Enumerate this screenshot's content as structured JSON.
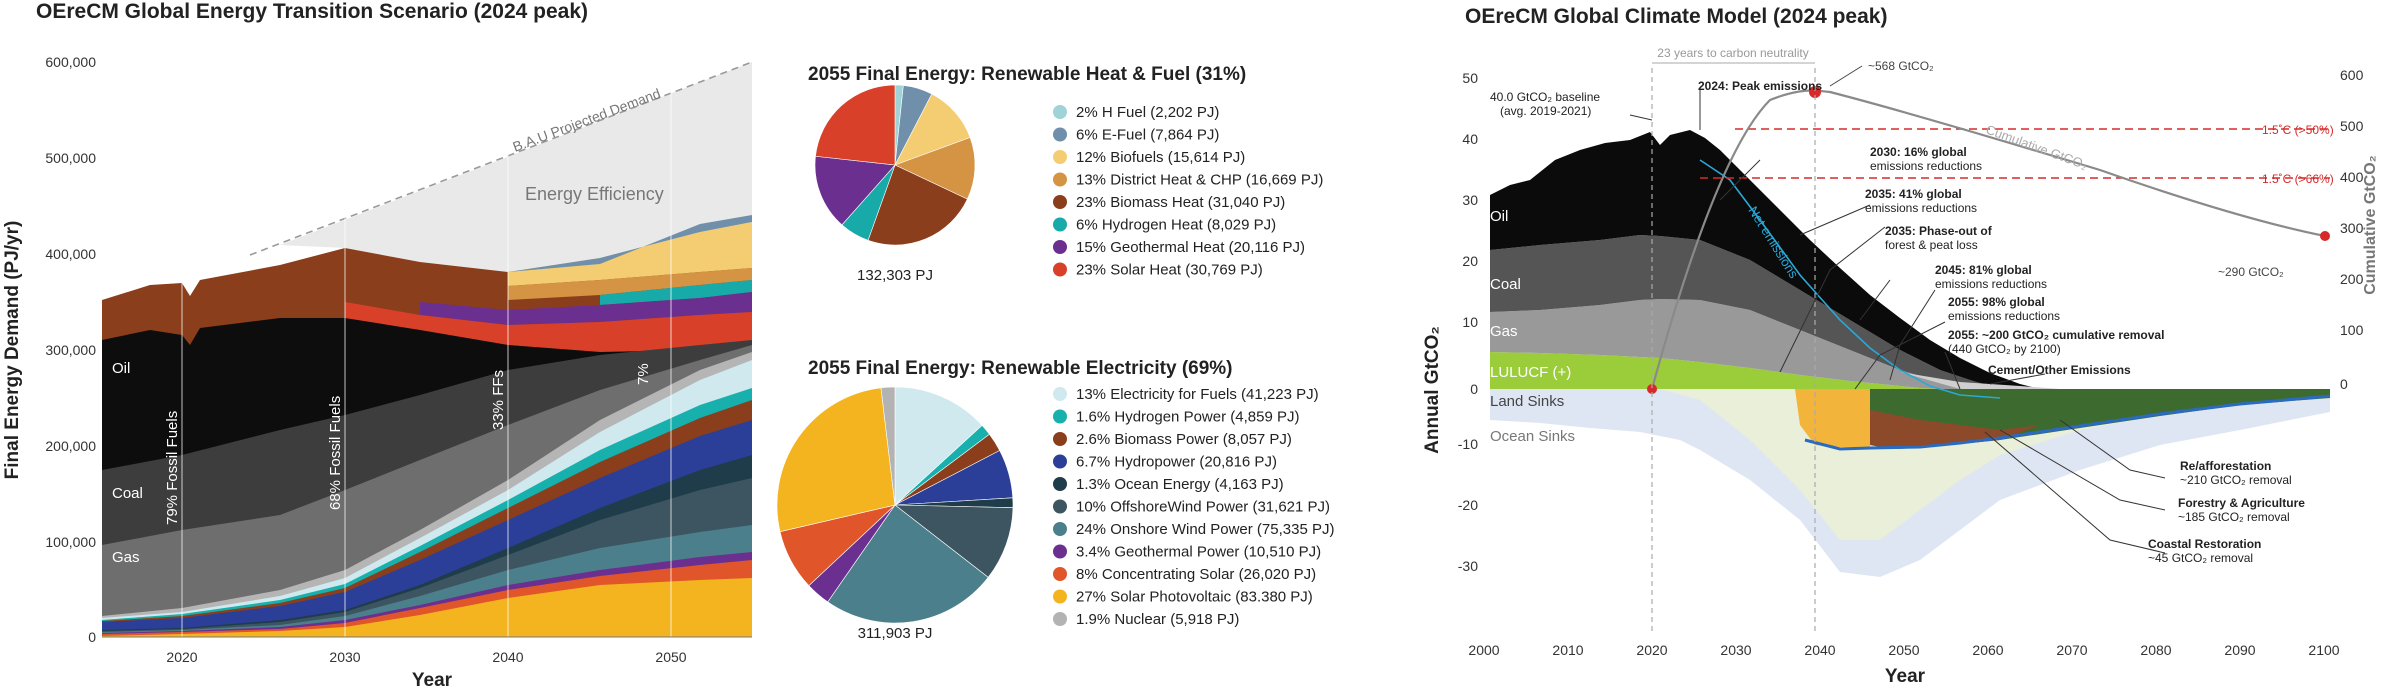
{
  "energy": {
    "title": "OEreCM Global Energy Transition Scenario (2024 peak)",
    "ylabel": "Final Energy Demand (PJ/yr)",
    "xlabel": "Year",
    "annotations": {
      "bau": "B.A.U Projected Demand",
      "efficiency": "Energy Efficiency",
      "oil": "Oil",
      "coal": "Coal",
      "gas": "Gas",
      "ff79": "79% Fossil Fuels",
      "ff68": "68% Fossil Fuels",
      "ff33": "33% FFs",
      "ff7": "7%"
    }
  },
  "heat_pie": {
    "title": "2055 Final Energy: Renewable Heat & Fuel (31%)",
    "total": "132,303 PJ",
    "items": [
      {
        "label": "2% H Fuel (2,202 PJ)",
        "value": 2202,
        "color": "#9fd3d8"
      },
      {
        "label": "6% E-Fuel (7,864 PJ)",
        "value": 7864,
        "color": "#6f8fab"
      },
      {
        "label": "12% Biofuels (15,614 PJ)",
        "value": 15614,
        "color": "#f4cd73"
      },
      {
        "label": "13% District Heat & CHP (16,669 PJ)",
        "value": 16669,
        "color": "#d49444"
      },
      {
        "label": "23% Biomass Heat (31,040 PJ)",
        "value": 31040,
        "color": "#8b3e1b"
      },
      {
        "label": "6% Hydrogen Heat (8,029 PJ)",
        "value": 8029,
        "color": "#17aaa8"
      },
      {
        "label": "15% Geothermal Heat (20,116 PJ)",
        "value": 20116,
        "color": "#6b2f8f"
      },
      {
        "label": "23% Solar Heat (30,769 PJ)",
        "value": 30769,
        "color": "#d8402a"
      }
    ]
  },
  "elec_pie": {
    "title": "2055 Final Energy: Renewable Electricity (69%)",
    "total": "311,903 PJ",
    "items": [
      {
        "label": "13% Electricity for Fuels (41,223 PJ)",
        "value": 41223,
        "color": "#cfe9ee"
      },
      {
        "label": "1.6% Hydrogen Power (4,859 PJ)",
        "value": 4859,
        "color": "#17b0ad"
      },
      {
        "label": "2.6% Biomass Power (8,057 PJ)",
        "value": 8057,
        "color": "#8b3e1b"
      },
      {
        "label": "6.7% Hydropower (20,816 PJ)",
        "value": 20816,
        "color": "#2b3f99"
      },
      {
        "label": "1.3% Ocean Energy (4,163 PJ)",
        "value": 4163,
        "color": "#1f3c4a"
      },
      {
        "label": "10% OffshoreWind Power (31,621 PJ)",
        "value": 31621,
        "color": "#3c5560"
      },
      {
        "label": "24% Onshore Wind Power (75,335 PJ)",
        "value": 75335,
        "color": "#4c7f8c"
      },
      {
        "label": "3.4% Geothermal Power (10,510 PJ)",
        "value": 10510,
        "color": "#6b2f8f"
      },
      {
        "label": "8% Concentrating Solar (26,020 PJ)",
        "value": 26020,
        "color": "#e0562a"
      },
      {
        "label": "27% Solar Photovoltaic (83.380 PJ)",
        "value": 83380,
        "color": "#f4b420"
      },
      {
        "label": "1.9% Nuclear (5,918 PJ)",
        "value": 5918,
        "color": "#b3b3b3"
      }
    ]
  },
  "climate": {
    "title": "OEreCM Global Climate Model (2024 peak)",
    "ylabel": "Annual  GtCO₂",
    "y2label": "Cumulative GtCO₂",
    "xlabel": "Year",
    "labels": {
      "neutrality": "23 years to carbon neutrality",
      "cum568": "~568 GtCO₂",
      "cum290": "~290 GtCO₂",
      "baseline1": "40.0 GtCO₂ baseline",
      "baseline2": "(avg. 2019-2021)",
      "peak": "2024: Peak emissions",
      "l15_50": "1.5˚C (>50%)",
      "l15_66": "1.5˚C (>66%)",
      "cumcurve": "Cumulative GtCO₂",
      "netem": "Net emissions",
      "oil": "Oil",
      "coal": "Coal",
      "gas": "Gas",
      "luluc": "LULUCF (+)",
      "land": "Land Sinks",
      "ocean": "Ocean Sinks",
      "a2030a": "2030: 16% global",
      "a2030b": "emissions reductions",
      "a2035a": "2035: 41% global",
      "a2035b": "emissions reductions",
      "a2035c": "2035: Phase-out of",
      "a2035d": "forest & peat loss",
      "a2045a": "2045: 81% global",
      "a2045b": "emissions reductions",
      "a2055a": "2055: 98% global",
      "a2055b": "emissions reductions",
      "a2055c": "2055: ~200 GtCO₂ cumulative removal",
      "a2055d": "(440 GtCO₂ by 2100)",
      "cement": "Cement/Other Emissions",
      "refor1": "Re/afforestation",
      "refor2": "~210 GtCO₂ removal",
      "forest1": "Forestry & Agriculture",
      "forest2": "~185 GtCO₂ removal",
      "coast1": "Coastal Restoration",
      "coast2": "~45 GtCO₂ removal"
    }
  },
  "chart_data": [
    {
      "type": "area",
      "title": "OEreCM Global Energy Transition Scenario (2024 peak)",
      "xlabel": "Year",
      "ylabel": "Final Energy Demand (PJ/yr)",
      "xlim": [
        2015,
        2055
      ],
      "ylim": [
        0,
        600000
      ],
      "x": [
        2015,
        2020,
        2025,
        2030,
        2035,
        2040,
        2045,
        2050,
        2055
      ],
      "series": [
        {
          "name": "Solar",
          "values": [
            2000,
            4000,
            9000,
            20000,
            40000,
            60000,
            72000,
            80000,
            85000
          ]
        },
        {
          "name": "Concentrating Solar",
          "values": [
            500,
            1000,
            2000,
            4000,
            8000,
            14000,
            20000,
            24000,
            26000
          ]
        },
        {
          "name": "Geothermal",
          "values": [
            1000,
            1500,
            2000,
            3000,
            5000,
            7000,
            8500,
            10000,
            10500
          ]
        },
        {
          "name": "Onshore Wind",
          "values": [
            1000,
            3000,
            8000,
            16000,
            28000,
            45000,
            60000,
            70000,
            75000
          ]
        },
        {
          "name": "Offshore Wind",
          "values": [
            300,
            800,
            2000,
            5000,
            10000,
            18000,
            25000,
            30000,
            32000
          ]
        },
        {
          "name": "Hydropower",
          "values": [
            12000,
            13000,
            14000,
            15000,
            16000,
            17500,
            19000,
            20000,
            20800
          ]
        },
        {
          "name": "Electricity for Fuels",
          "values": [
            0,
            0,
            0,
            1000,
            4000,
            12000,
            25000,
            36000,
            41000
          ]
        },
        {
          "name": "Gas",
          "values": [
            80000,
            82000,
            83000,
            82000,
            80000,
            55000,
            30000,
            15000,
            4000
          ]
        },
        {
          "name": "Coal",
          "values": [
            75000,
            76000,
            74000,
            70000,
            60000,
            40000,
            20000,
            8000,
            2000
          ]
        },
        {
          "name": "Oil",
          "values": [
            140000,
            150000,
            155000,
            140000,
            110000,
            80000,
            50000,
            20000,
            5000
          ]
        },
        {
          "name": "Renewable Heat & Fuel",
          "values": [
            45000,
            45000,
            50000,
            52000,
            55000,
            60000,
            85000,
            110000,
            132000
          ]
        },
        {
          "name": "B.A.U Projected Demand",
          "values": [
            355000,
            375000,
            395000,
            415000,
            450000,
            490000,
            525000,
            560000,
            600000
          ]
        }
      ]
    },
    {
      "type": "pie",
      "title": "2055 Final Energy: Renewable Heat & Fuel (31%)",
      "categories": [
        "H Fuel",
        "E-Fuel",
        "Biofuels",
        "District Heat & CHP",
        "Biomass Heat",
        "Hydrogen Heat",
        "Geothermal Heat",
        "Solar Heat"
      ],
      "values": [
        2202,
        7864,
        15614,
        16669,
        31040,
        8029,
        20116,
        30769
      ]
    },
    {
      "type": "pie",
      "title": "2055 Final Energy: Renewable Electricity (69%)",
      "categories": [
        "Electricity for Fuels",
        "Hydrogen Power",
        "Biomass Power",
        "Hydropower",
        "Ocean Energy",
        "OffshoreWind Power",
        "Onshore Wind Power",
        "Geothermal Power",
        "Concentrating Solar",
        "Solar Photovoltaic",
        "Nuclear"
      ],
      "values": [
        41223,
        4859,
        8057,
        20816,
        4163,
        31621,
        75335,
        10510,
        26020,
        83380,
        5918
      ]
    },
    {
      "type": "area",
      "title": "OEreCM Global Climate Model (2024 peak)",
      "xlabel": "Year",
      "ylabel": "Annual GtCO2",
      "xlim": [
        2000,
        2100
      ],
      "ylim": [
        -40,
        50
      ],
      "y2lim": [
        -120,
        600
      ],
      "x": [
        2000,
        2005,
        2010,
        2015,
        2020,
        2024,
        2030,
        2035,
        2040,
        2045,
        2050,
        2055,
        2060,
        2070,
        2080,
        2090,
        2100
      ],
      "series": [
        {
          "name": "Net emissions",
          "values": [
            30,
            33,
            36,
            38.5,
            38,
            40.5,
            33,
            24,
            13,
            4,
            0.5,
            -1,
            -2,
            -2.5,
            -2.5,
            -2.5,
            -2
          ]
        },
        {
          "name": "Land Sinks",
          "values": [
            -3,
            -3,
            -3,
            -3,
            -3,
            -3,
            -4,
            -6,
            -9,
            -10,
            -8,
            -6,
            -5,
            -4,
            -3.5,
            -3,
            -2
          ]
        },
        {
          "name": "Ocean Sinks",
          "values": [
            -9,
            -10,
            -11,
            -12,
            -13,
            -14,
            -18,
            -23,
            -28,
            -29,
            -26,
            -22,
            -19,
            -15,
            -12,
            -10,
            -8
          ]
        },
        {
          "name": "Cumulative GtCO2",
          "values": [
            null,
            null,
            null,
            null,
            0,
            150,
            330,
            460,
            540,
            568,
            555,
            530,
            500,
            450,
            390,
            330,
            290
          ]
        }
      ],
      "thresholds": [
        {
          "label": "1.5˚C (>50%)",
          "value": 500
        },
        {
          "label": "1.5˚C (>66%)",
          "value": 400
        }
      ]
    }
  ]
}
